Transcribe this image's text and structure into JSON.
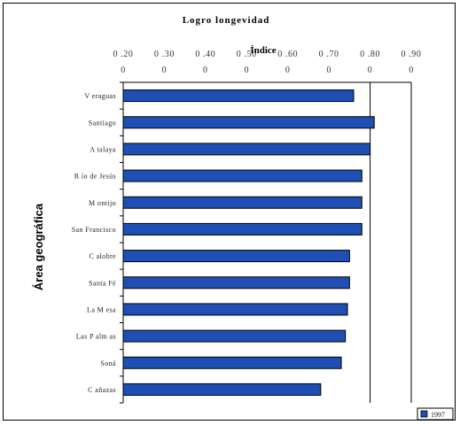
{
  "chart_data": {
    "type": "bar",
    "orientation": "horizontal",
    "title": "Logro longevidad",
    "xlabel": "Índice",
    "ylabel": "Área geográfica",
    "xlim": [
      0.2,
      0.9
    ],
    "xticks": [
      0.2,
      0.3,
      0.4,
      0.5,
      0.6,
      0.7,
      0.8,
      0.9
    ],
    "xtick_labels_top": [
      "0 .20",
      "0 .30",
      "0 .40",
      "0 .50",
      "0 .60",
      "0 .70",
      "0 .80",
      "0 .90"
    ],
    "xtick_labels_bottom": [
      "0",
      "0",
      "0",
      "0",
      "0",
      "0",
      "0",
      "0"
    ],
    "grid": "vertical lines at 0.80 and 0.90",
    "categories": [
      "Veraguas",
      "Santiago",
      "Atalaya",
      "Río de Jesús",
      "Montijo",
      "San Francisco",
      "Calobre",
      "Santa Fé",
      "La Mesa",
      "Las Palmas",
      "Soná",
      "Cañazas"
    ],
    "category_labels_shown": [
      "V eraguas",
      "Santiago",
      "A talaya",
      "R ío de Jesús",
      "M ontijo",
      "San Francisco",
      "C alobre",
      "Santa Fé",
      "La M esa",
      "Las P alm as",
      "Soná",
      "C añazas"
    ],
    "series": [
      {
        "name": "1997",
        "color": "#1f4fb4",
        "values": [
          0.76,
          0.81,
          0.8,
          0.78,
          0.78,
          0.78,
          0.75,
          0.75,
          0.745,
          0.74,
          0.73,
          0.68
        ]
      }
    ],
    "legend": "bottom-right"
  }
}
